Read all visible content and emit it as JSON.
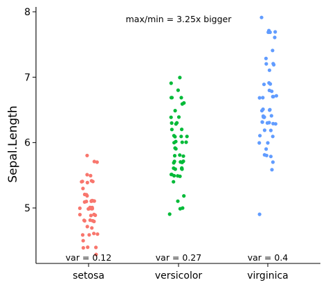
{
  "chart_data": {
    "type": "scatter",
    "subtype": "jitter strip plot",
    "title": "",
    "xlabel": "",
    "ylabel": "Sepal.Length",
    "ylim": [
      4.2,
      8.1
    ],
    "yticks": [
      5,
      6,
      7,
      8
    ],
    "grid": false,
    "legend": "none",
    "categories": [
      "setosa",
      "versicolor",
      "virginica"
    ],
    "series": [
      {
        "category": "setosa",
        "color": "#F8766D",
        "values": [
          5.1,
          4.9,
          4.7,
          4.6,
          5.0,
          5.4,
          4.6,
          5.0,
          4.4,
          4.9,
          5.4,
          4.8,
          4.8,
          4.3,
          5.8,
          5.7,
          5.4,
          5.1,
          5.7,
          5.1,
          5.4,
          5.1,
          4.6,
          5.1,
          4.8,
          5.0,
          5.0,
          5.2,
          5.2,
          4.7,
          4.8,
          5.4,
          5.2,
          5.5,
          4.9,
          5.0,
          5.5,
          4.9,
          4.4,
          5.1,
          5.0,
          4.5,
          4.4,
          5.0,
          5.1,
          4.8,
          5.1,
          4.6,
          5.3,
          5.0
        ]
      },
      {
        "category": "versicolor",
        "color": "#00BA38",
        "values": [
          7.0,
          6.4,
          6.9,
          5.5,
          6.5,
          5.7,
          6.3,
          4.9,
          6.6,
          5.2,
          5.0,
          5.9,
          6.0,
          6.1,
          5.6,
          6.7,
          5.6,
          5.8,
          6.2,
          5.6,
          5.9,
          6.1,
          6.3,
          6.1,
          6.4,
          6.6,
          6.8,
          6.7,
          6.0,
          5.7,
          5.5,
          5.5,
          5.8,
          6.0,
          5.4,
          6.0,
          6.7,
          6.3,
          5.6,
          5.5,
          5.5,
          6.1,
          5.8,
          5.0,
          5.6,
          5.7,
          5.7,
          6.2,
          5.1,
          5.7
        ]
      },
      {
        "category": "virginica",
        "color": "#619CFF",
        "values": [
          6.3,
          5.8,
          7.1,
          6.3,
          6.5,
          7.6,
          4.9,
          7.3,
          6.7,
          7.2,
          6.5,
          6.4,
          6.8,
          5.7,
          5.8,
          6.4,
          6.5,
          7.7,
          7.7,
          6.0,
          6.9,
          5.6,
          7.7,
          6.3,
          6.7,
          7.2,
          6.2,
          6.1,
          6.4,
          7.2,
          7.4,
          7.9,
          6.4,
          6.3,
          6.1,
          7.7,
          6.3,
          6.4,
          6.0,
          6.9,
          6.7,
          6.9,
          5.8,
          6.8,
          6.7,
          6.7,
          6.3,
          6.5,
          6.2,
          5.9
        ]
      }
    ],
    "annotations": {
      "top": "max/min = 3.25x bigger",
      "variance_labels": [
        "var = 0.12",
        "var = 0.27",
        "var = 0.4"
      ]
    }
  }
}
